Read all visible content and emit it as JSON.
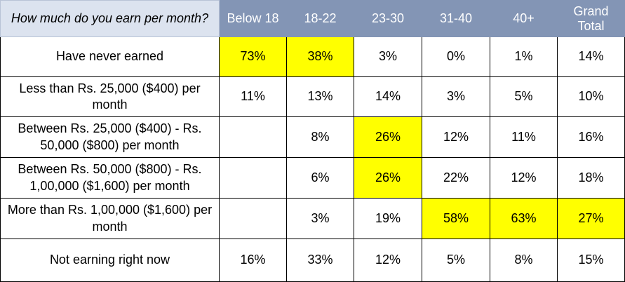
{
  "chart_data": {
    "type": "table",
    "corner_label": "How much do you earn per month?",
    "columns": [
      "Below 18",
      "18-22",
      "23-30",
      "31-40",
      "40+",
      "Grand Total"
    ],
    "rows": [
      {
        "label": "Have never earned",
        "cells": [
          "73%",
          "38%",
          "3%",
          "0%",
          "1%",
          "14%"
        ],
        "highlight": [
          true,
          true,
          false,
          false,
          false,
          false
        ]
      },
      {
        "label": "Less than Rs. 25,000 ($400) per month",
        "cells": [
          "11%",
          "13%",
          "14%",
          "3%",
          "5%",
          "10%"
        ],
        "highlight": [
          false,
          false,
          false,
          false,
          false,
          false
        ]
      },
      {
        "label": "Between Rs. 25,000 ($400) - Rs. 50,000 ($800) per month",
        "cells": [
          "",
          "8%",
          "26%",
          "12%",
          "11%",
          "16%"
        ],
        "highlight": [
          false,
          false,
          true,
          false,
          false,
          false
        ]
      },
      {
        "label": "Between Rs. 50,000 ($800) - Rs. 1,00,000 ($1,600) per month",
        "cells": [
          "",
          "6%",
          "26%",
          "22%",
          "12%",
          "18%"
        ],
        "highlight": [
          false,
          false,
          true,
          false,
          false,
          false
        ]
      },
      {
        "label": "More than Rs. 1,00,000 ($1,600) per month",
        "cells": [
          "",
          "3%",
          "19%",
          "58%",
          "63%",
          "27%"
        ],
        "highlight": [
          false,
          false,
          false,
          true,
          true,
          true
        ]
      },
      {
        "label": "Not earning right now",
        "cells": [
          "16%",
          "33%",
          "12%",
          "5%",
          "8%",
          "15%"
        ],
        "highlight": [
          false,
          false,
          false,
          false,
          false,
          false
        ]
      }
    ],
    "colors": {
      "header_bg": "#8395b5",
      "corner_bg": "#dce3ef",
      "highlight": "#ffff00",
      "header_text": "#ffffff"
    }
  }
}
